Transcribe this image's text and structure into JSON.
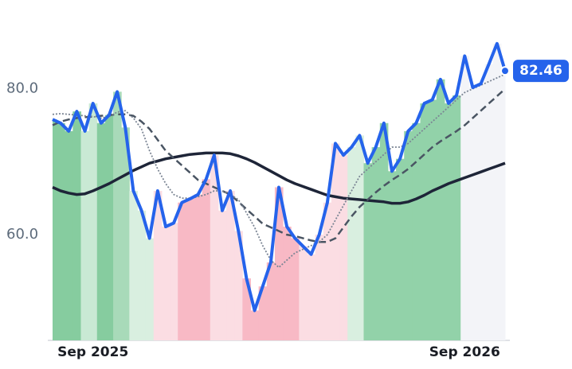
{
  "chart_data": {
    "type": "line",
    "categories": [
      null,
      null,
      null,
      null,
      null,
      "Sep 2025",
      null,
      null,
      null,
      null,
      null,
      null,
      null,
      null,
      null,
      null,
      null,
      null,
      null,
      null,
      null,
      null,
      null,
      null,
      null,
      null,
      null,
      null,
      null,
      null,
      null,
      null,
      null,
      null,
      null,
      null,
      null,
      null,
      null,
      null,
      null,
      null,
      null,
      null,
      null,
      null,
      null,
      null,
      null,
      null,
      null,
      "Sep 2026",
      null,
      null,
      null,
      null,
      null
    ],
    "series": [
      {
        "color": "#2563eb",
        "style": "solid",
        "width": 4,
        "values": [
          75.8,
          75.3,
          74.2,
          76.9,
          74.2,
          78,
          75.3,
          76.4,
          79.6,
          74.7,
          66,
          63.3,
          59.5,
          66,
          61.1,
          61.6,
          64.4,
          64.9,
          65.5,
          67.6,
          70.9,
          63.3,
          66,
          60.5,
          54,
          49.6,
          52.9,
          56.2,
          66.5,
          61.1,
          59.5,
          58.4,
          57.3,
          60,
          64.4,
          72.5,
          70.9,
          72,
          73.6,
          69.8,
          72,
          75.3,
          68.7,
          70.4,
          74.2,
          75.3,
          78,
          78.5,
          81.3,
          78,
          79.1,
          84.5,
          80.2,
          80.7,
          83.4,
          86.2,
          82.46
        ]
      },
      {
        "color": "#7b8594",
        "style": "dotted",
        "width": 1.8,
        "values": [
          76.5,
          76.6,
          76.5,
          76.4,
          76.3,
          76.2,
          76,
          76.2,
          76.8,
          77,
          76,
          74.5,
          71.5,
          69,
          67,
          65.5,
          65,
          65,
          65.2,
          65.5,
          66,
          66,
          65.5,
          64.8,
          63,
          61,
          58.5,
          56.5,
          55.5,
          56.5,
          57.5,
          58,
          58.5,
          59,
          60,
          62,
          64,
          66,
          68,
          69,
          70,
          71,
          72,
          72,
          72.5,
          73.5,
          74.5,
          75.5,
          76.5,
          77.5,
          78.5,
          79.5,
          80,
          80.5,
          81,
          81.5,
          82
        ]
      },
      {
        "color": "#4a5563",
        "style": "dashed",
        "width": 2.5,
        "values": [
          75,
          75.5,
          75.8,
          76,
          76.1,
          76.2,
          76.3,
          76.4,
          76.5,
          76.5,
          76.3,
          75.5,
          74.5,
          73,
          71.5,
          70.5,
          69.5,
          68.5,
          67.5,
          67,
          66.5,
          66,
          65.5,
          64.5,
          63.5,
          62.5,
          61.5,
          61,
          60.5,
          60,
          59.8,
          59.5,
          59.2,
          59,
          59,
          59.5,
          61,
          62.5,
          63.8,
          64.8,
          65.8,
          66.7,
          67.5,
          68.2,
          69,
          70,
          71,
          72,
          72.8,
          73.5,
          74.2,
          75,
          76,
          77,
          78,
          79,
          80
        ]
      },
      {
        "color": "#1e2538",
        "style": "solid",
        "width": 3.5,
        "values": [
          66.5,
          66,
          65.7,
          65.5,
          65.6,
          66,
          66.5,
          67,
          67.6,
          68.2,
          68.8,
          69.3,
          69.8,
          70.1,
          70.4,
          70.6,
          70.8,
          71,
          71.1,
          71.2,
          71.2,
          71.2,
          71.1,
          70.8,
          70.4,
          69.9,
          69.3,
          68.7,
          68.1,
          67.5,
          67,
          66.6,
          66.2,
          65.8,
          65.4,
          65.2,
          65,
          64.9,
          64.8,
          64.7,
          64.6,
          64.5,
          64.3,
          64.3,
          64.5,
          64.9,
          65.4,
          66,
          66.5,
          67,
          67.4,
          67.8,
          68.2,
          68.6,
          69,
          69.4,
          69.8
        ]
      }
    ],
    "bands": [
      {
        "from": 0,
        "to": 3,
        "color": "#86cc9f"
      },
      {
        "from": 4,
        "to": 5,
        "color": "#c9e9d4"
      },
      {
        "from": 6,
        "to": 7,
        "color": "#86cc9f"
      },
      {
        "from": 8,
        "to": 9,
        "color": "#a8dab9"
      },
      {
        "from": 10,
        "to": 12,
        "color": "#d9efe0"
      },
      {
        "from": 13,
        "to": 15,
        "color": "#fbdde3"
      },
      {
        "from": 16,
        "to": 19,
        "color": "#f8b9c5"
      },
      {
        "from": 20,
        "to": 23,
        "color": "#fbdde3"
      },
      {
        "from": 24,
        "to": 30,
        "color": "#f8b9c5"
      },
      {
        "from": 31,
        "to": 36,
        "color": "#fbdde3"
      },
      {
        "from": 37,
        "to": 38,
        "color": "#d9efe0"
      },
      {
        "from": 39,
        "to": 50,
        "color": "#92d2a9"
      },
      {
        "from": 51,
        "to": 56,
        "color": "#f3f4f8"
      }
    ],
    "ylim": [
      45.5,
      90
    ],
    "yticks": [
      {
        "value": 60,
        "label": "60.0"
      },
      {
        "value": 80,
        "label": "80.0"
      }
    ],
    "last_value_color": "#2563eb"
  }
}
